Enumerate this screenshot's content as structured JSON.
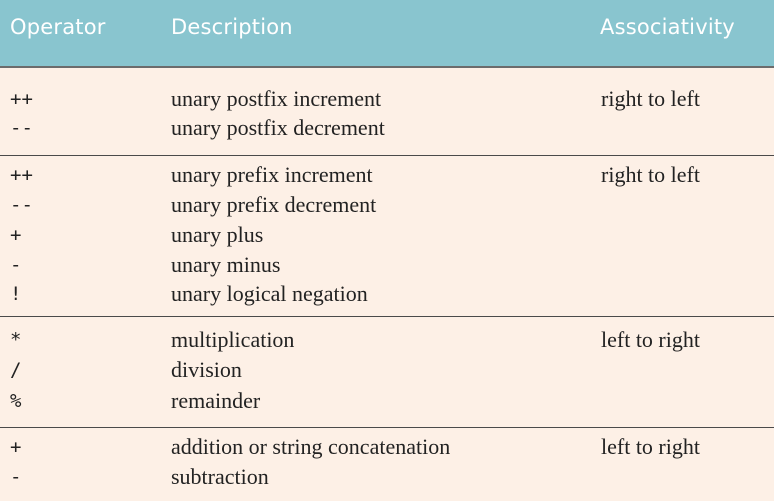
{
  "header": {
    "operator": "Operator",
    "description": "Description",
    "associativity": "Associativity"
  },
  "groups": [
    {
      "associativity": "right to left",
      "rows": [
        {
          "op": "++",
          "desc": "unary postfix increment"
        },
        {
          "op": "--",
          "desc": "unary postfix decrement"
        }
      ]
    },
    {
      "associativity": "right to left",
      "rows": [
        {
          "op": "++",
          "desc": "unary prefix increment"
        },
        {
          "op": "--",
          "desc": "unary prefix decrement"
        },
        {
          "op": "+",
          "desc": "unary plus"
        },
        {
          "op": "-",
          "desc": "unary minus"
        },
        {
          "op": "!",
          "desc": "unary logical negation"
        }
      ]
    },
    {
      "associativity": "left to right",
      "rows": [
        {
          "op": "*",
          "desc": "multiplication"
        },
        {
          "op": "/",
          "desc": "division"
        },
        {
          "op": "%",
          "desc": "remainder"
        }
      ]
    },
    {
      "associativity": "left to right",
      "rows": [
        {
          "op": "+",
          "desc": "addition or string concatenation"
        },
        {
          "op": "-",
          "desc": "subtraction"
        }
      ]
    }
  ]
}
